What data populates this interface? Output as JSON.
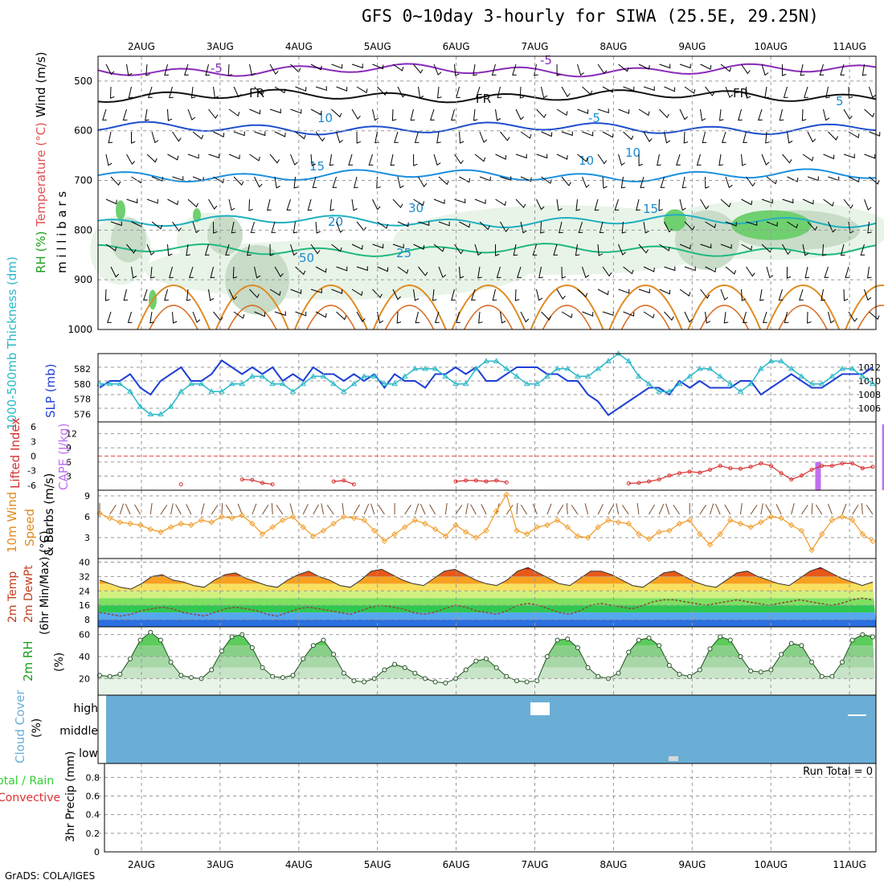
{
  "title": "GFS 0~10day 3-hourly for SIWA (25.5E, 29.25N)",
  "footer": "GrADS: COLA/IGES",
  "days": [
    "2AUG",
    "3AUG",
    "4AUG",
    "5AUG",
    "6AUG",
    "7AUG",
    "8AUG",
    "9AUG",
    "10AUG",
    "11AUG"
  ],
  "colors": {
    "wind_barb": "#000000",
    "slp": "#1f3fd6",
    "thickness": "#2ab8c8",
    "lifted_index": "#d83030",
    "cape": "#c070f0",
    "wind10m_speed": "#f0a030",
    "wind10m_barb": "#7a4a2a",
    "rh2m": "#1b9e1b",
    "cloud": "#6aaed6",
    "precip_total": "#30d030",
    "precip_conv": "#e03030"
  },
  "chart_data": [
    {
      "id": "upper_air",
      "type": "heatmap",
      "ylabel_parts": [
        "RH (%)",
        "Temperature (°C)",
        "Wind (m/s)"
      ],
      "ylabel_sub": "m i l l i b a r s",
      "y_ticks": [
        500,
        600,
        700,
        800,
        900,
        1000
      ],
      "ylim": [
        450,
        1000
      ],
      "contour_labels": [
        "-5",
        "FR",
        "-5",
        "10",
        "15",
        "20",
        "25",
        "10",
        "30",
        "50",
        "-5",
        "FR",
        "FR",
        "5",
        "10",
        "15"
      ],
      "isotherms": [
        {
          "name": "-5 upper",
          "color": "#8a2ab8",
          "level": 478
        },
        {
          "name": "FR",
          "color": "#111111",
          "level": 530
        },
        {
          "name": "5",
          "color": "#1f4fd0",
          "level": 595
        },
        {
          "name": "10",
          "color": "#1a90e0",
          "level": 690
        },
        {
          "name": "15",
          "color": "#20b0c0",
          "level": 782
        },
        {
          "name": "20",
          "color": "#20b880",
          "level": 840
        }
      ]
    },
    {
      "id": "slp_thickness",
      "type": "line",
      "ylabel_left": "1000-500mb Thickness (dm)",
      "ylabel_right": "SLP (mb)",
      "thickness_ticks": [
        576,
        578,
        580,
        582
      ],
      "slp_ticks": [
        1006,
        1008,
        1010,
        1012
      ],
      "slp": [
        1009,
        1010,
        1010,
        1011,
        1009,
        1008,
        1010,
        1011,
        1012,
        1010,
        1010,
        1011,
        1013,
        1012,
        1011,
        1012,
        1011,
        1012,
        1010,
        1011,
        1010,
        1012,
        1011,
        1011,
        1010,
        1011,
        1010,
        1011,
        1009,
        1011,
        1010,
        1010,
        1009,
        1011,
        1011,
        1012,
        1011,
        1012,
        1010,
        1010,
        1011,
        1012,
        1012,
        1012,
        1011,
        1011,
        1010,
        1010,
        1008,
        1007,
        1005,
        1006,
        1007,
        1008,
        1009,
        1009,
        1008,
        1010,
        1009,
        1010,
        1009,
        1009,
        1009,
        1010,
        1010,
        1008,
        1009,
        1010,
        1011,
        1010,
        1009,
        1009,
        1010,
        1011,
        1011,
        1011,
        1012
      ],
      "thickness": [
        580,
        580,
        580,
        579,
        577,
        576,
        576,
        577,
        579,
        580,
        580,
        579,
        579,
        580,
        580,
        581,
        581,
        580,
        580,
        579,
        580,
        581,
        581,
        580,
        579,
        580,
        581,
        581,
        580,
        580,
        581,
        582,
        582,
        582,
        581,
        580,
        580,
        582,
        583,
        583,
        582,
        581,
        580,
        580,
        581,
        582,
        582,
        581,
        581,
        582,
        583,
        584,
        583,
        581,
        580,
        579,
        579,
        580,
        581,
        582,
        582,
        581,
        580,
        579,
        580,
        582,
        583,
        583,
        582,
        581,
        580,
        580,
        581,
        582,
        582,
        581,
        580
      ]
    },
    {
      "id": "cape_li",
      "type": "bar",
      "ylabel_left": "Lifted Index",
      "ylabel_right": "CAPE (J/kg)",
      "li_ticks": [
        "-6",
        "-3",
        "0",
        "3",
        "6"
      ],
      "cape_ticks": [
        3,
        6,
        9,
        12
      ],
      "lifted_index": [
        null,
        null,
        null,
        null,
        null,
        null,
        null,
        null,
        5.8,
        null,
        null,
        null,
        null,
        null,
        4.8,
        4.9,
        5.5,
        5.8,
        null,
        null,
        null,
        null,
        null,
        5.2,
        5.0,
        5.8,
        null,
        null,
        null,
        null,
        null,
        null,
        null,
        null,
        null,
        5.2,
        5.0,
        5.0,
        5.2,
        5.0,
        5.4,
        null,
        null,
        null,
        null,
        null,
        null,
        null,
        null,
        null,
        null,
        null,
        5.6,
        5.5,
        5.2,
        4.8,
        4.0,
        3.5,
        3.2,
        3.4,
        2.8,
        2.0,
        2.5,
        2.6,
        2.2,
        1.5,
        2.0,
        3.5,
        4.8,
        4.0,
        2.8,
        2.0,
        2.0,
        1.5,
        1.5,
        2.5,
        2.2
      ],
      "cape": [
        {
          "day_pos": 8.6,
          "value": 6
        },
        {
          "day_pos": 9.45,
          "value": 14
        },
        {
          "day_pos": 9.83,
          "value": 2.5
        },
        {
          "day_pos": 9.97,
          "value": 1.2
        }
      ]
    },
    {
      "id": "wind10m",
      "type": "line",
      "ylabel_left": "10m Wind",
      "ylabel_mid": "Speed",
      "ylabel_right": "& Barbs (m/s)",
      "speed_ticks": [
        3,
        6,
        9
      ],
      "speed": [
        6.5,
        5.8,
        5.2,
        5.0,
        4.8,
        4.2,
        3.8,
        4.5,
        5.0,
        4.8,
        5.5,
        5.2,
        6.0,
        5.8,
        6.2,
        5.0,
        3.5,
        4.5,
        5.5,
        6.0,
        4.5,
        3.2,
        4.0,
        5.0,
        6.0,
        5.8,
        5.5,
        4.0,
        2.5,
        3.5,
        4.5,
        5.5,
        5.0,
        4.2,
        3.2,
        4.8,
        3.8,
        3.0,
        4.0,
        6.8,
        9.2,
        4.0,
        3.5,
        4.5,
        4.8,
        5.5,
        4.5,
        3.2,
        3.0,
        4.5,
        5.5,
        5.2,
        5.0,
        3.5,
        2.8,
        3.8,
        4.0,
        5.0,
        5.5,
        3.5,
        2.0,
        3.5,
        5.5,
        5.0,
        4.5,
        5.2,
        6.0,
        5.8,
        4.8,
        4.0,
        1.2,
        3.5,
        5.5,
        6.0,
        5.5,
        3.5,
        2.5
      ]
    },
    {
      "id": "temp_dewpt",
      "type": "area",
      "ylabel_left": "2m Temp",
      "ylabel_mid": "2m DewPt",
      "ylabel_right": "(6hr Min/Max) (°C)",
      "ticks": [
        8,
        16,
        24,
        32,
        40
      ],
      "temp": [
        30,
        28,
        26,
        25,
        28,
        32,
        33,
        30,
        29,
        27,
        26,
        30,
        33,
        34,
        31,
        29,
        27,
        26,
        30,
        33,
        35,
        32,
        30,
        27,
        26,
        30,
        35,
        36,
        33,
        30,
        28,
        27,
        31,
        35,
        36,
        33,
        30,
        28,
        27,
        30,
        35,
        37,
        34,
        31,
        28,
        27,
        31,
        35,
        35,
        33,
        30,
        27,
        26,
        30,
        34,
        35,
        32,
        29,
        27,
        26,
        30,
        34,
        35,
        32,
        30,
        28,
        27,
        31,
        35,
        37,
        34,
        31,
        29,
        27,
        29
      ],
      "dewpt": [
        12,
        11,
        10,
        11,
        13,
        14,
        15,
        14,
        12,
        11,
        10,
        12,
        14,
        15,
        14,
        13,
        11,
        10,
        12,
        14,
        15,
        14,
        13,
        12,
        11,
        13,
        15,
        16,
        15,
        14,
        12,
        11,
        12,
        14,
        16,
        15,
        13,
        12,
        11,
        13,
        16,
        17,
        16,
        14,
        12,
        11,
        13,
        16,
        17,
        16,
        15,
        14,
        16,
        18,
        19,
        19,
        18,
        17,
        16,
        17,
        18,
        19,
        18,
        17,
        16,
        17,
        18,
        19,
        18,
        17,
        16,
        17,
        19,
        20,
        19
      ]
    },
    {
      "id": "rh2m",
      "type": "area",
      "ylabel_left": "2m RH",
      "ylabel_right": "(%)",
      "ticks": [
        20,
        40,
        60
      ],
      "rh": [
        23,
        22,
        24,
        38,
        55,
        62,
        55,
        35,
        23,
        21,
        20,
        28,
        45,
        58,
        60,
        48,
        30,
        22,
        21,
        23,
        38,
        50,
        55,
        42,
        25,
        18,
        17,
        20,
        28,
        33,
        30,
        25,
        20,
        17,
        16,
        20,
        28,
        36,
        38,
        30,
        22,
        18,
        17,
        18,
        40,
        55,
        56,
        48,
        30,
        22,
        20,
        25,
        44,
        55,
        57,
        50,
        32,
        24,
        22,
        28,
        47,
        58,
        55,
        40,
        27,
        26,
        28,
        42,
        52,
        50,
        35,
        22,
        22,
        35,
        55,
        60,
        58
      ]
    },
    {
      "id": "cloud",
      "type": "heatmap",
      "ylabel_left": "Cloud Cover",
      "ylabel_right": "(%)",
      "levels": [
        "high",
        "middle",
        "low"
      ]
    },
    {
      "id": "precip",
      "type": "bar",
      "ylabel_left": "Total / Rain",
      "ylabel_left2": "Convective",
      "ylabel_right": "3hr Precip (mm)",
      "ticks": [
        "0",
        "0.2",
        "0.4",
        "0.6",
        "0.8"
      ],
      "run_total": "Run Total = 0",
      "values": []
    }
  ]
}
